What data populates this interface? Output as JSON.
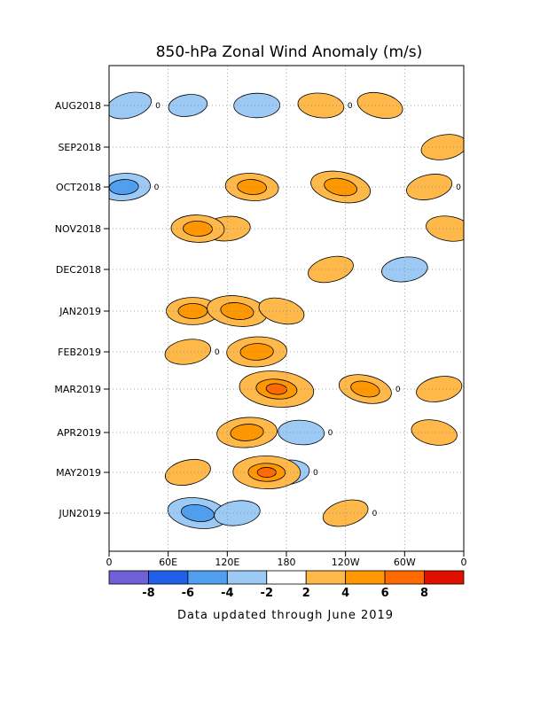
{
  "chart_data": {
    "type": "heatmap",
    "title": "850-hPa Zonal Wind Anomaly (m/s)",
    "footer": "Data updated through June 2019",
    "x_ticks": [
      "0",
      "60E",
      "120E",
      "180",
      "120W",
      "60W",
      "0"
    ],
    "y_ticks": [
      "AUG2018",
      "SEP2018",
      "OCT2018",
      "NOV2018",
      "DEC2018",
      "JAN2019",
      "FEB2019",
      "MAR2019",
      "APR2019",
      "MAY2019",
      "JUN2019"
    ],
    "contour_label": "0",
    "colorbar": {
      "colors": [
        "#7060d8",
        "#2060e8",
        "#4f9ef0",
        "#9ccaf5",
        "#ffffff",
        "#ffb84a",
        "#ff9800",
        "#ff6a00",
        "#e01000"
      ],
      "labels": [
        "-8",
        "-6",
        "-4",
        "-2",
        "2",
        "4",
        "6",
        "8"
      ]
    },
    "anomalies": [
      {
        "lon": 20,
        "month": "AUG2018",
        "value": -3
      },
      {
        "lon": 80,
        "month": "AUG2018",
        "value": -2
      },
      {
        "lon": 150,
        "month": "AUG2018",
        "value": -3
      },
      {
        "lon": 215,
        "month": "AUG2018",
        "value": 3
      },
      {
        "lon": 275,
        "month": "AUG2018",
        "value": 3
      },
      {
        "lon": 340,
        "month": "SEP2018",
        "value": 3
      },
      {
        "lon": 15,
        "month": "OCT2018",
        "value": -4
      },
      {
        "lon": 145,
        "month": "OCT2018",
        "value": 4
      },
      {
        "lon": 235,
        "month": "OCT2018",
        "value": 5
      },
      {
        "lon": 325,
        "month": "OCT2018",
        "value": 3
      },
      {
        "lon": 120,
        "month": "NOV2018",
        "value": 3
      },
      {
        "lon": 90,
        "month": "NOV2018",
        "value": 4
      },
      {
        "lon": 345,
        "month": "NOV2018",
        "value": 3
      },
      {
        "lon": 225,
        "month": "DEC2018",
        "value": 3
      },
      {
        "lon": 300,
        "month": "DEC2018",
        "value": -3
      },
      {
        "lon": 85,
        "month": "JAN2019",
        "value": 4
      },
      {
        "lon": 130,
        "month": "JAN2019",
        "value": 5
      },
      {
        "lon": 175,
        "month": "JAN2019",
        "value": 3
      },
      {
        "lon": 80,
        "month": "FEB2019",
        "value": 3
      },
      {
        "lon": 150,
        "month": "FEB2019",
        "value": 5
      },
      {
        "lon": 170,
        "month": "MAR2019",
        "value": 7
      },
      {
        "lon": 260,
        "month": "MAR2019",
        "value": 4
      },
      {
        "lon": 335,
        "month": "MAR2019",
        "value": 3
      },
      {
        "lon": 140,
        "month": "APR2019",
        "value": 5
      },
      {
        "lon": 195,
        "month": "APR2019",
        "value": -3
      },
      {
        "lon": 330,
        "month": "APR2019",
        "value": 3
      },
      {
        "lon": 80,
        "month": "MAY2019",
        "value": 3
      },
      {
        "lon": 180,
        "month": "MAY2019",
        "value": -3
      },
      {
        "lon": 160,
        "month": "MAY2019",
        "value": 6
      },
      {
        "lon": 90,
        "month": "JUN2019",
        "value": -5
      },
      {
        "lon": 240,
        "month": "JUN2019",
        "value": 3
      },
      {
        "lon": 130,
        "month": "JUN2019",
        "value": -3
      }
    ]
  }
}
